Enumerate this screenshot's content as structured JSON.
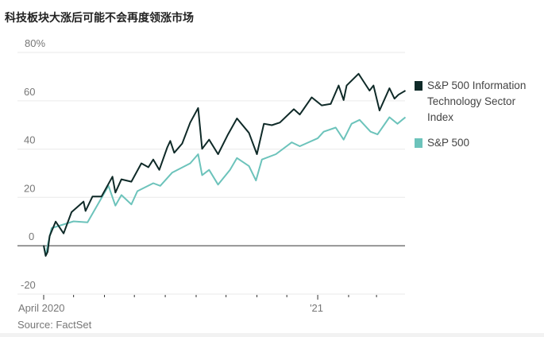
{
  "title": "科技板块大涨后可能不会再度领涨市场",
  "source": "Source: FactSet",
  "chart_data": {
    "type": "line",
    "title": "科技板块大涨后可能不会再度领涨市场",
    "xlabel": "",
    "ylabel": "",
    "x_unit": "days since April 1, 2020",
    "xlim": [
      0,
      365
    ],
    "ylim": [
      -20,
      80
    ],
    "y_ticks": [
      {
        "value": 80,
        "label": "80%"
      },
      {
        "value": 60,
        "label": "60"
      },
      {
        "value": 40,
        "label": "40"
      },
      {
        "value": 20,
        "label": "20"
      },
      {
        "value": 0,
        "label": "0"
      },
      {
        "value": -20,
        "label": "-20"
      }
    ],
    "x_ticks": [
      0,
      30,
      61,
      91,
      122,
      153,
      183,
      214,
      244,
      275,
      306,
      334
    ],
    "x_tick_labels": [
      {
        "value": 0,
        "label": "April 2020"
      },
      {
        "value": 275,
        "label": "'21"
      }
    ],
    "grid": true,
    "legend": "right",
    "series": [
      {
        "name": "S&P 500 Information Technology Sector Index",
        "legend_lines": [
          "S&P 500 Information",
          "Technology Sector",
          "Index"
        ],
        "color": "#0f2a28",
        "x": [
          0,
          2,
          4,
          6,
          12,
          20,
          28,
          40,
          42,
          49,
          58,
          69,
          72,
          78,
          88,
          98,
          105,
          110,
          116,
          124,
          127,
          131,
          139,
          147,
          155,
          159,
          166,
          175,
          185,
          194,
          206,
          214,
          221,
          229,
          237,
          251,
          257,
          269,
          279,
          288,
          296,
          301,
          304,
          316,
          321,
          327,
          331,
          337,
          347,
          352,
          356,
          363
        ],
        "values": [
          0.2,
          -4.2,
          -2.5,
          4,
          10,
          5.1,
          13.9,
          18.3,
          14.4,
          20.4,
          20.4,
          28.6,
          22,
          27.5,
          26.5,
          34.1,
          32.5,
          35.7,
          31.4,
          40.7,
          43.4,
          38.5,
          42.3,
          51,
          57,
          40.1,
          43.9,
          37.9,
          46.1,
          52.7,
          46.7,
          37.9,
          50.5,
          49.9,
          51,
          56.5,
          54.3,
          61.4,
          58.1,
          58.7,
          66.3,
          60.3,
          66.3,
          71.2,
          68,
          64.2,
          66.3,
          56,
          65.2,
          60.9,
          62.5,
          64.2
        ]
      },
      {
        "name": "S&P 500",
        "legend_lines": [
          "S&P 500"
        ],
        "color": "#6cc3bb",
        "x": [
          0,
          2,
          5,
          8,
          30,
          44,
          65,
          72,
          78,
          88,
          94,
          110,
          117,
          129,
          147,
          155,
          159,
          166,
          175,
          187,
          194,
          206,
          213,
          219,
          233,
          249,
          257,
          275,
          281,
          293,
          301,
          309,
          317,
          328,
          335,
          347,
          355,
          363
        ],
        "values": [
          0,
          -4,
          2,
          7.3,
          10.1,
          9.7,
          24.8,
          16.6,
          21,
          17.1,
          22.6,
          25.9,
          24.8,
          30.3,
          34.1,
          37.9,
          29.2,
          31.4,
          25.3,
          31.4,
          36.3,
          33,
          27,
          35.7,
          37.9,
          42.8,
          41.2,
          44.5,
          47.2,
          48.9,
          43.9,
          50.5,
          52.1,
          47.2,
          46.1,
          53.2,
          50.5,
          53.2
        ]
      }
    ]
  }
}
